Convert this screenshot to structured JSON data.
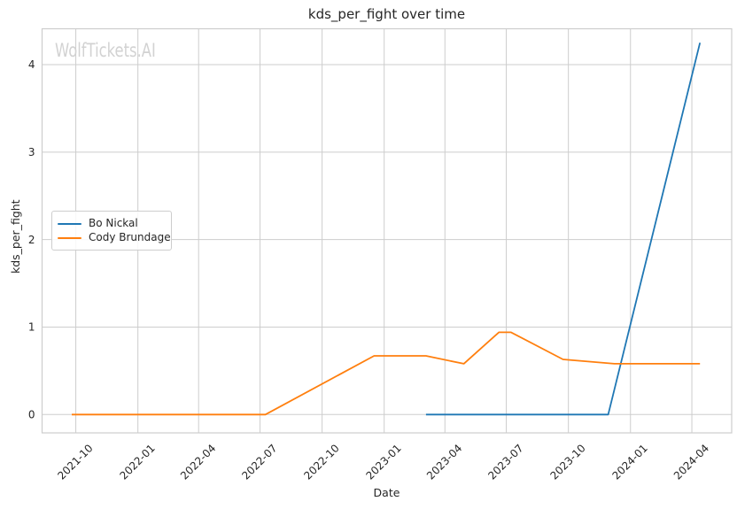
{
  "watermark": "WolfTickets.AI",
  "colors": {
    "background": "#ffffff",
    "grid": "#cdcdcd",
    "spine": "#cdcdcd",
    "text": "#262626",
    "watermark_text": "#d2d2d2"
  },
  "chart_data": {
    "type": "line",
    "title": "kds_per_fight over time",
    "xlabel": "Date",
    "ylabel": "kds_per_fight",
    "grid": true,
    "legend_position": "center left",
    "x_ticks": [
      "2021-10",
      "2022-01",
      "2022-04",
      "2022-07",
      "2022-10",
      "2023-01",
      "2023-04",
      "2023-07",
      "2023-10",
      "2024-01",
      "2024-04"
    ],
    "y_ticks": [
      0,
      1,
      2,
      3,
      4
    ],
    "xlim": [
      "2021-08-12",
      "2024-05-30"
    ],
    "ylim": [
      -0.21,
      4.41
    ],
    "series": [
      {
        "name": "Bo Nickal",
        "color": "#1f77b4",
        "points": [
          [
            "2023-03-04",
            0.0
          ],
          [
            "2023-11-29",
            0.0
          ],
          [
            "2024-04-13",
            4.25
          ]
        ]
      },
      {
        "name": "Cody Brundage",
        "color": "#ff7f0e",
        "points": [
          [
            "2021-09-25",
            0.0
          ],
          [
            "2022-07-09",
            0.0
          ],
          [
            "2022-12-17",
            0.67
          ],
          [
            "2023-03-04",
            0.67
          ],
          [
            "2023-04-29",
            0.58
          ],
          [
            "2023-06-20",
            0.94
          ],
          [
            "2023-07-08",
            0.94
          ],
          [
            "2023-09-23",
            0.63
          ],
          [
            "2023-12-08",
            0.58
          ],
          [
            "2024-04-13",
            0.58
          ]
        ]
      }
    ]
  }
}
